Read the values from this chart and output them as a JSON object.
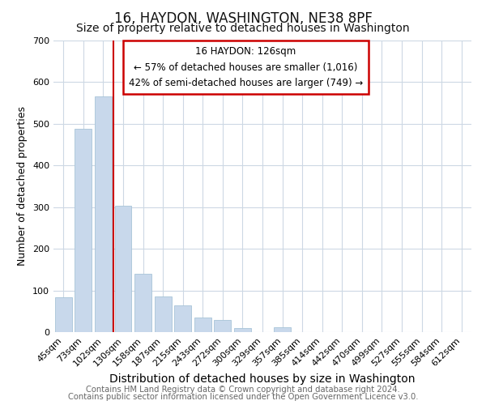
{
  "title": "16, HAYDON, WASHINGTON, NE38 8PF",
  "subtitle": "Size of property relative to detached houses in Washington",
  "xlabel": "Distribution of detached houses by size in Washington",
  "ylabel": "Number of detached properties",
  "bar_color": "#c8d8eb",
  "bar_edge_color": "#a8c4d8",
  "categories": [
    "45sqm",
    "73sqm",
    "102sqm",
    "130sqm",
    "158sqm",
    "187sqm",
    "215sqm",
    "243sqm",
    "272sqm",
    "300sqm",
    "329sqm",
    "357sqm",
    "385sqm",
    "414sqm",
    "442sqm",
    "470sqm",
    "499sqm",
    "527sqm",
    "555sqm",
    "584sqm",
    "612sqm"
  ],
  "values": [
    84,
    488,
    565,
    303,
    140,
    85,
    64,
    35,
    29,
    10,
    0,
    12,
    0,
    0,
    0,
    0,
    0,
    0,
    0,
    0,
    0
  ],
  "vline_color": "#cc0000",
  "annotation_title": "16 HAYDON: 126sqm",
  "annotation_line1": "← 57% of detached houses are smaller (1,016)",
  "annotation_line2": "42% of semi-detached houses are larger (749) →",
  "box_edge_color": "#cc0000",
  "ylim": [
    0,
    700
  ],
  "yticks": [
    0,
    100,
    200,
    300,
    400,
    500,
    600,
    700
  ],
  "footer1": "Contains HM Land Registry data © Crown copyright and database right 2024.",
  "footer2": "Contains public sector information licensed under the Open Government Licence v3.0.",
  "bg_color": "#ffffff",
  "grid_color": "#cdd8e4",
  "title_fontsize": 12,
  "subtitle_fontsize": 10,
  "xlabel_fontsize": 10,
  "ylabel_fontsize": 9,
  "tick_fontsize": 8,
  "footer_fontsize": 7.2
}
